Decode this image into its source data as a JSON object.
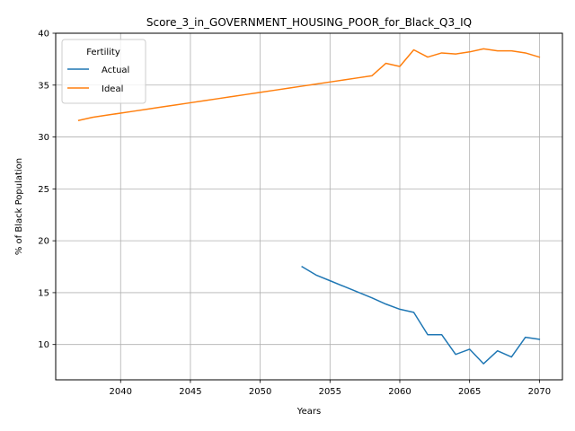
{
  "chart_data": {
    "type": "line",
    "title": "Score_3_in_GOVERNMENT_HOUSING_POOR_for_Black_Q3_IQ",
    "xlabel": "Years",
    "ylabel": "% of Black Population",
    "xlim": [
      2035.35,
      2071.65
    ],
    "ylim": [
      6.6,
      40.0
    ],
    "xticks": [
      2040,
      2045,
      2050,
      2055,
      2060,
      2065,
      2070
    ],
    "yticks": [
      10,
      15,
      20,
      25,
      30,
      35,
      40
    ],
    "grid": true,
    "legend": {
      "title": "Fertility",
      "placement": "top-left"
    },
    "series": [
      {
        "name": "Actual",
        "color": "#1f77b4",
        "x": [
          2053,
          2054,
          2055,
          2056,
          2057,
          2058,
          2059,
          2060,
          2061,
          2062,
          2063,
          2064,
          2065,
          2066,
          2067,
          2068,
          2069,
          2070
        ],
        "values": [
          17.5,
          16.7,
          16.15,
          15.6,
          15.05,
          14.5,
          13.9,
          13.4,
          13.1,
          10.95,
          10.95,
          9.05,
          9.55,
          8.15,
          9.4,
          8.8,
          10.7,
          10.5
        ]
      },
      {
        "name": "Ideal",
        "color": "#ff7f0e",
        "x": [
          2037,
          2038,
          2039,
          2040,
          2041,
          2042,
          2043,
          2044,
          2045,
          2046,
          2047,
          2048,
          2049,
          2050,
          2051,
          2052,
          2053,
          2054,
          2055,
          2056,
          2057,
          2058,
          2059,
          2060,
          2061,
          2062,
          2063,
          2064,
          2065,
          2066,
          2067,
          2068,
          2069,
          2070
        ],
        "values": [
          31.6,
          31.9,
          32.1,
          32.3,
          32.5,
          32.7,
          32.9,
          33.1,
          33.3,
          33.5,
          33.7,
          33.9,
          34.1,
          34.3,
          34.5,
          34.7,
          34.9,
          35.1,
          35.3,
          35.5,
          35.7,
          35.9,
          37.1,
          36.8,
          38.4,
          37.7,
          38.1,
          38.0,
          38.2,
          38.5,
          38.3,
          38.3,
          38.1,
          37.7
        ]
      }
    ]
  }
}
